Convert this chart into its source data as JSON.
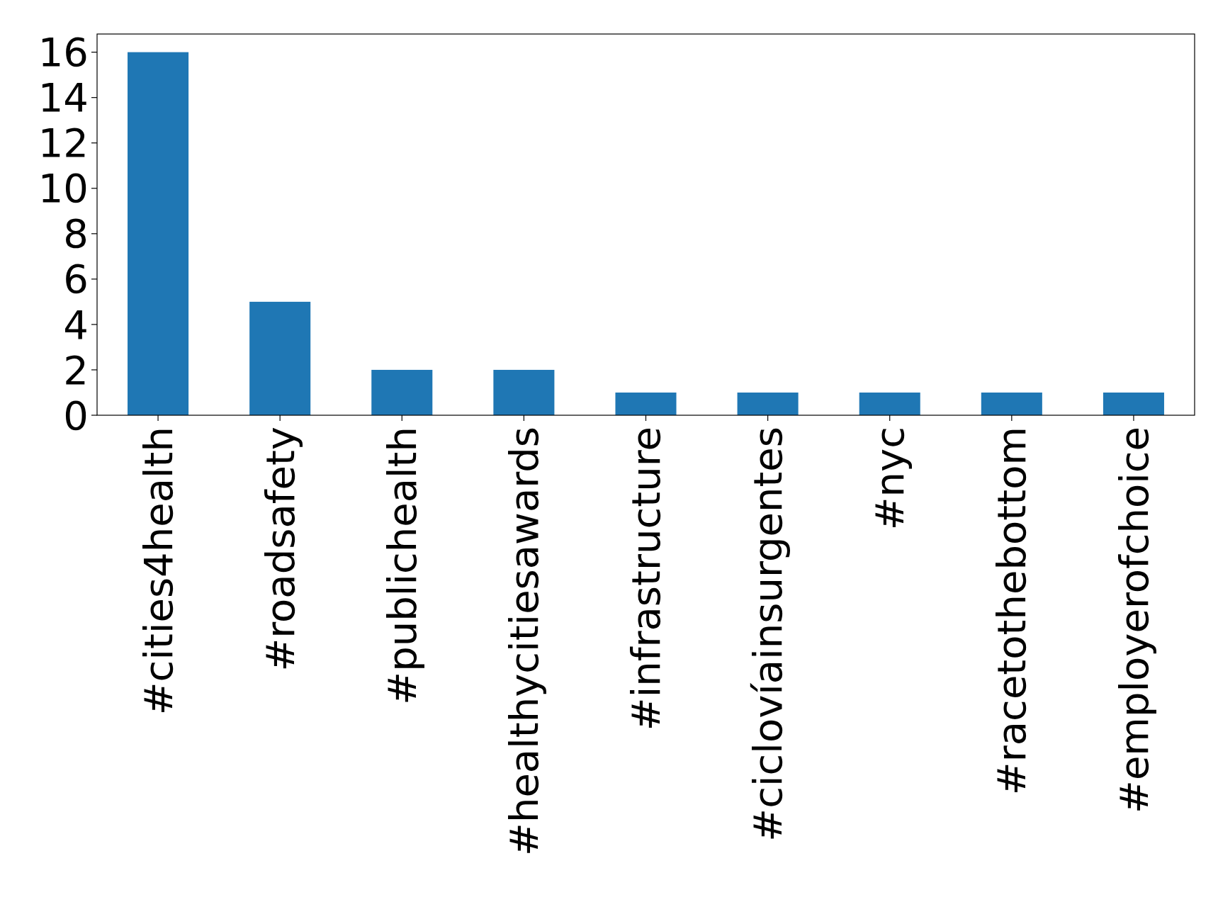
{
  "chart_data": {
    "type": "bar",
    "categories": [
      "#cities4health",
      "#roadsafety",
      "#publichealth",
      "#healthycitiesawards",
      "#infrastructure",
      "#ciclovíainsurgentes",
      "#nyc",
      "#racetothebottom",
      "#employerofchoice"
    ],
    "values": [
      16,
      5,
      2,
      2,
      1,
      1,
      1,
      1,
      1
    ],
    "color": "#1f77b4",
    "ylim": [
      0,
      16.8
    ],
    "yticks": [
      0,
      2,
      4,
      6,
      8,
      10,
      12,
      14,
      16
    ]
  }
}
